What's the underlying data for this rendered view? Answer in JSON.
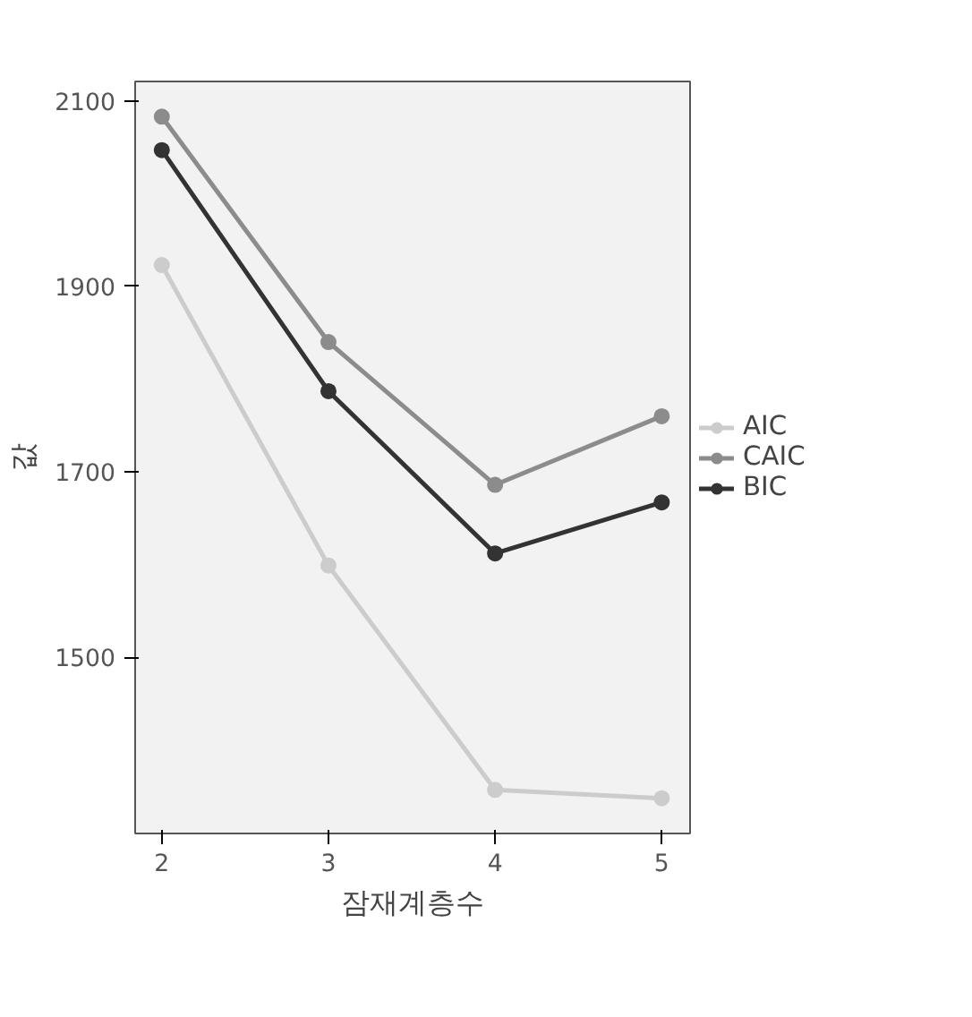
{
  "chart_data": {
    "type": "line",
    "xlabel": "잠재계층수",
    "ylabel": "값",
    "x": [
      2,
      3,
      4,
      5
    ],
    "series": [
      {
        "name": "AIC",
        "color": "#cccccc",
        "values": [
          1923,
          1599,
          1357,
          1348
        ]
      },
      {
        "name": "CAIC",
        "color": "#8c8c8c",
        "values": [
          2083,
          1840,
          1686,
          1760
        ]
      },
      {
        "name": "BIC",
        "color": "#333333",
        "values": [
          2047,
          1787,
          1612,
          1667
        ]
      }
    ],
    "xlim": [
      1.84,
      5.17
    ],
    "ylim": [
      1310,
      2121
    ],
    "xticks": [
      2,
      3,
      4,
      5
    ],
    "yticks": [
      1500,
      1700,
      1900,
      2100
    ],
    "grid": false,
    "legend": "right",
    "marker": "circle",
    "line_style": "solid"
  }
}
